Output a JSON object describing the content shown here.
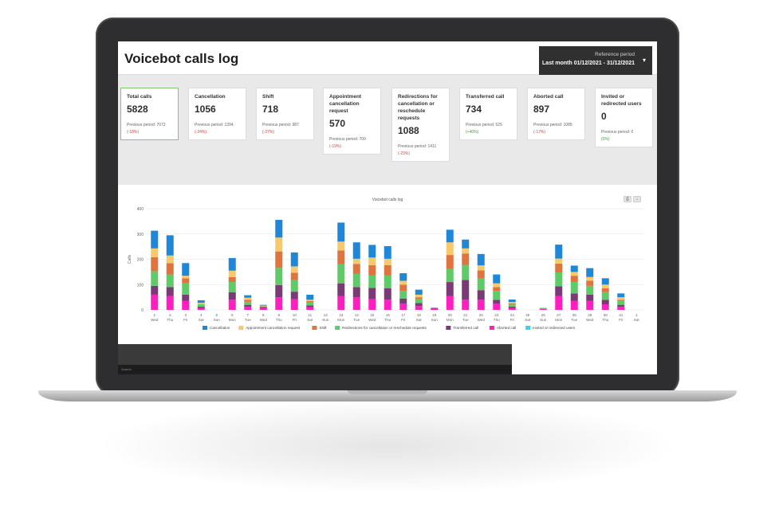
{
  "header": {
    "title": "Voicebot calls log",
    "period_label": "Reference period",
    "period_value": "Last month 01/12/2021 - 31/12/2021"
  },
  "cards": [
    {
      "title": "Total calls",
      "value": "5828",
      "prev": "Previous period: 7072",
      "delta": "(-18%)",
      "trend": "neg"
    },
    {
      "title": "Cancellation",
      "value": "1056",
      "prev": "Previous period: 1394",
      "delta": "(-24%)",
      "trend": "neg"
    },
    {
      "title": "Shift",
      "value": "718",
      "prev": "Previous period: 987",
      "delta": "(-27%)",
      "trend": "neg"
    },
    {
      "title": "Appointment cancellation request",
      "value": "570",
      "prev": "Previous period: 700",
      "delta": "(-19%)",
      "trend": "neg"
    },
    {
      "title": "Redirections for cancellation or reschedule requests",
      "value": "1088",
      "prev": "Previous period: 1411",
      "delta": "(-23%)",
      "trend": "neg"
    },
    {
      "title": "Transferred call",
      "value": "734",
      "prev": "Previous period: 525",
      "delta": "(+40%)",
      "trend": "pos"
    },
    {
      "title": "Aborted call",
      "value": "897",
      "prev": "Previous period: 1085",
      "delta": "(-17%)",
      "trend": "neg"
    },
    {
      "title": "Invited or redirected users",
      "value": "0",
      "prev": "Previous period: 0",
      "delta": "(0%)",
      "trend": "pos"
    }
  ],
  "toolbar": {
    "print_icon": "print-icon",
    "download_icon": "download-icon"
  },
  "footer": {
    "search_label": "Search"
  },
  "chart_data": {
    "type": "bar",
    "stacked": true,
    "title": "Voicebot calls log",
    "ylabel": "Calls",
    "xlabel": "",
    "ylim": [
      0,
      400
    ],
    "yticks": [
      0,
      100,
      200,
      300,
      400
    ],
    "grid": true,
    "legend_position": "bottom",
    "categories": [
      "1",
      "2",
      "3",
      "4",
      "5",
      "6",
      "7",
      "8",
      "9",
      "10",
      "11",
      "12",
      "13",
      "14",
      "15",
      "16",
      "17",
      "18",
      "19",
      "20",
      "21",
      "22",
      "23",
      "24",
      "25",
      "26",
      "27",
      "28",
      "29",
      "30",
      "31",
      "1"
    ],
    "weekdays": [
      "Wed",
      "Thu",
      "Fri",
      "Sat",
      "Sun",
      "Mon",
      "Tue",
      "Wed",
      "Thu",
      "Fri",
      "Sat",
      "Sun",
      "Mon",
      "Tue",
      "Wed",
      "Thu",
      "Fri",
      "Sat",
      "Sun",
      "Mon",
      "Tue",
      "Wed",
      "Thu",
      "Fri",
      "Sat",
      "Sun",
      "Mon",
      "Tue",
      "Wed",
      "Thu",
      "Fri",
      "Sat"
    ],
    "series": [
      {
        "name": "Aborted call",
        "color": "#ff1fbf",
        "values": [
          60,
          55,
          35,
          8,
          0,
          40,
          12,
          8,
          50,
          42,
          10,
          0,
          55,
          50,
          42,
          40,
          25,
          15,
          5,
          55,
          40,
          40,
          25,
          8,
          0,
          3,
          55,
          35,
          35,
          22,
          12,
          0
        ]
      },
      {
        "name": "Transferred call",
        "color": "#7a3a75",
        "values": [
          35,
          35,
          25,
          5,
          0,
          30,
          8,
          3,
          48,
          30,
          8,
          0,
          50,
          40,
          45,
          45,
          20,
          12,
          3,
          55,
          78,
          38,
          15,
          5,
          0,
          0,
          38,
          30,
          25,
          18,
          8,
          0
        ]
      },
      {
        "name": "Redirections for cancellation or reschedule requests",
        "color": "#5fcb68",
        "values": [
          58,
          50,
          45,
          10,
          0,
          40,
          12,
          3,
          68,
          45,
          12,
          0,
          75,
          52,
          50,
          52,
          30,
          15,
          0,
          52,
          60,
          48,
          35,
          8,
          0,
          5,
          55,
          45,
          35,
          30,
          15,
          0
        ]
      },
      {
        "name": "Shift",
        "color": "#e0743e",
        "values": [
          55,
          45,
          20,
          0,
          0,
          20,
          8,
          0,
          65,
          30,
          5,
          0,
          55,
          40,
          40,
          40,
          25,
          8,
          0,
          55,
          45,
          30,
          15,
          5,
          0,
          0,
          35,
          25,
          20,
          15,
          5,
          0
        ]
      },
      {
        "name": "Appointment cancellation request",
        "color": "#f8c96a",
        "values": [
          35,
          30,
          10,
          5,
          0,
          25,
          8,
          3,
          55,
          25,
          5,
          0,
          35,
          20,
          30,
          25,
          15,
          10,
          0,
          50,
          20,
          20,
          15,
          5,
          0,
          0,
          20,
          15,
          15,
          15,
          10,
          0
        ]
      },
      {
        "name": "Cancellation",
        "color": "#1e87d8",
        "values": [
          70,
          80,
          50,
          10,
          0,
          50,
          10,
          3,
          70,
          55,
          20,
          0,
          75,
          65,
          50,
          50,
          30,
          20,
          0,
          50,
          35,
          45,
          35,
          10,
          0,
          0,
          55,
          25,
          35,
          25,
          15,
          0
        ]
      },
      {
        "name": "Invited or redirected users",
        "color": "#33d6f0",
        "values": [
          0,
          0,
          0,
          0,
          0,
          0,
          0,
          0,
          0,
          0,
          0,
          0,
          0,
          0,
          0,
          0,
          0,
          0,
          0,
          0,
          0,
          0,
          0,
          0,
          0,
          0,
          0,
          0,
          0,
          0,
          0,
          0
        ]
      }
    ],
    "legend_order": [
      "Cancellation",
      "Appointment cancellation request",
      "Shift",
      "Redirections for cancellation or reschedule requests",
      "Transferred call",
      "Aborted call",
      "Invited or redirected users"
    ]
  }
}
